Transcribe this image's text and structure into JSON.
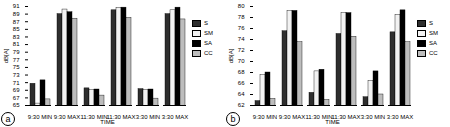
{
  "chart_data": [
    {
      "type": "bar",
      "title": "a",
      "x_label": "TIME",
      "y_label": "dB[A]",
      "categories": [
        "9:30 MIN",
        "9:30 MAX",
        "11:30 MIN",
        "11:30 MAX",
        "3:30 MIN",
        "3:30 MAX"
      ],
      "series": [
        {
          "name": "S",
          "color": "#2e2e2e",
          "values": [
            70.7,
            89.0,
            69.5,
            90.0,
            69.3,
            89.0
          ]
        },
        {
          "name": "SM",
          "color": "#f2f2f2",
          "values": [
            65.5,
            90.2,
            69.0,
            90.6,
            69.0,
            90.0
          ]
        },
        {
          "name": "SA",
          "color": "#000000",
          "values": [
            71.6,
            89.5,
            69.2,
            90.7,
            69.2,
            90.7
          ]
        },
        {
          "name": "CC",
          "color": "#bdbdbd",
          "values": [
            66.6,
            87.8,
            67.6,
            88.0,
            66.8,
            87.6
          ]
        }
      ],
      "ylim": [
        65,
        91
      ],
      "yticks": [
        65,
        67,
        69,
        71,
        73,
        75,
        77,
        79,
        81,
        83,
        85,
        87,
        89,
        91
      ],
      "legend": "right"
    },
    {
      "type": "bar",
      "title": "b",
      "x_label": "TIME",
      "y_label": "dB[A]",
      "categories": [
        "9:30 MIN",
        "9:30 MAX",
        "11:30 MIN",
        "11:30 MAX",
        "3:30 MIN",
        "3:30 MAX"
      ],
      "series": [
        {
          "name": "S",
          "color": "#2e2e2e",
          "values": [
            62.8,
            75.5,
            64.3,
            75.0,
            63.5,
            75.3
          ]
        },
        {
          "name": "SM",
          "color": "#f2f2f2",
          "values": [
            67.5,
            79.2,
            68.2,
            78.8,
            66.5,
            78.5
          ]
        },
        {
          "name": "SA",
          "color": "#000000",
          "values": [
            68.0,
            79.2,
            68.5,
            78.8,
            68.2,
            79.3
          ]
        },
        {
          "name": "CC",
          "color": "#bdbdbd",
          "values": [
            63.2,
            73.5,
            63.0,
            74.5,
            64.0,
            73.5
          ]
        }
      ],
      "ylim": [
        62,
        80
      ],
      "yticks": [
        62,
        64,
        66,
        68,
        70,
        72,
        74,
        76,
        78,
        80
      ],
      "legend": "right"
    }
  ]
}
